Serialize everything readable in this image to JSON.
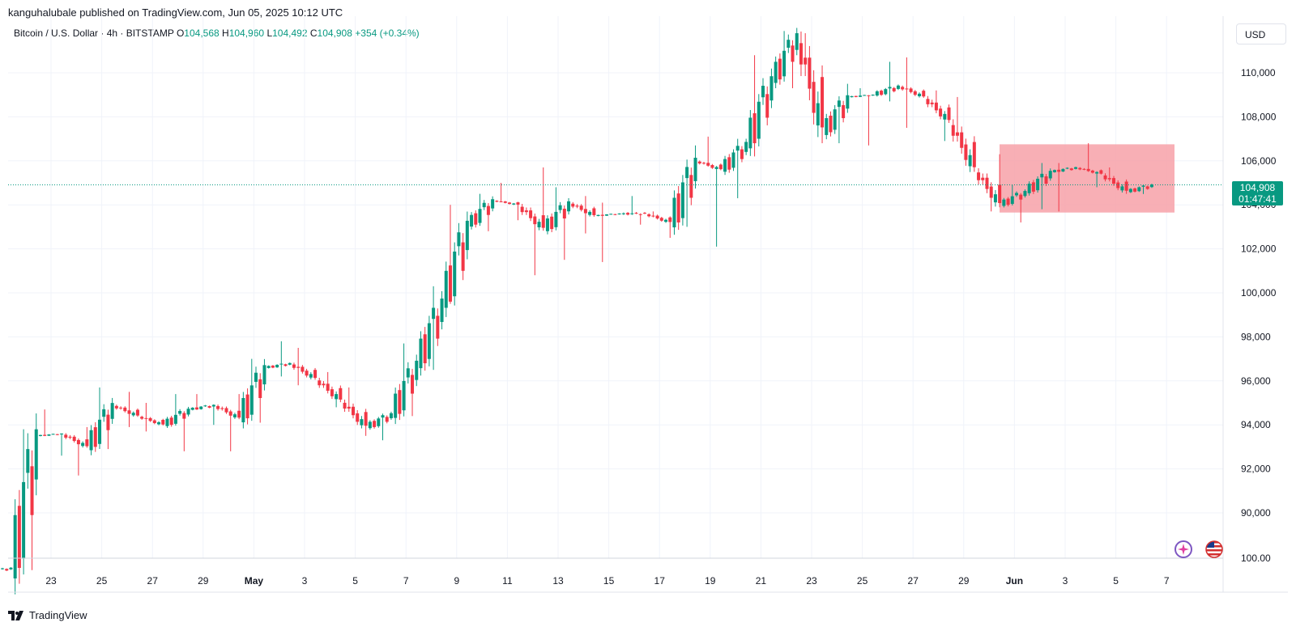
{
  "header": {
    "published": "kanguhalubale published on TradingView.com, Jun 05, 2025 10:12 UTC"
  },
  "legend": {
    "symbol": "Bitcoin / U.S. Dollar · 4h · BITSTAMP",
    "open_label": "O",
    "open": "104,568",
    "high_label": "H",
    "high": "104,960",
    "low_label": "L",
    "low": "104,492",
    "close_label": "C",
    "close": "104,908",
    "change": "+354 (+0.34%)"
  },
  "currency": "USD",
  "last_price": {
    "value": "104,908",
    "countdown": "01:47:41"
  },
  "brand": {
    "name": "TradingView"
  },
  "icons": {
    "logo": "tradingview-logo-icon",
    "quick": "sparkle-icon",
    "flag": "us-flag-icon"
  },
  "colors": {
    "up": "#089981",
    "down": "#f23645",
    "zone": "#f7a1a8",
    "grid": "#f0f3fa"
  },
  "chart_data": {
    "type": "candlestick",
    "interval": "4h",
    "exchange": "BITSTAMP",
    "currency": "USD",
    "y_ticks": [
      90000,
      92000,
      94000,
      96000,
      98000,
      100000,
      102000,
      104000,
      106000,
      108000,
      110000
    ],
    "y_labels": [
      "90,000",
      "92,000",
      "94,000",
      "96,000",
      "98,000",
      "100,000",
      "102,000",
      "104,000",
      "106,000",
      "108,000",
      "110,000"
    ],
    "y_bottom_label": "100.00",
    "x_labels": [
      "23",
      "25",
      "27",
      "29",
      "May",
      "3",
      "5",
      "7",
      "9",
      "11",
      "13",
      "15",
      "17",
      "19",
      "21",
      "23",
      "25",
      "27",
      "29",
      "Jun",
      "3",
      "5",
      "7"
    ],
    "last_price": 104908,
    "consolidation_zone": {
      "from_label": "30 May",
      "to_label": "6 Jun",
      "low": 103650,
      "high": 106750
    },
    "daily": [
      {
        "date": "Apr 21",
        "o": 87300,
        "h": 87800,
        "l": 87000,
        "c": 87500
      },
      {
        "date": "Apr 22",
        "o": 87500,
        "h": 93800,
        "l": 87400,
        "c": 93500
      },
      {
        "date": "Apr 23",
        "o": 93500,
        "h": 94700,
        "l": 92600,
        "c": 93600
      },
      {
        "date": "Apr 24",
        "o": 93600,
        "h": 93900,
        "l": 91700,
        "c": 93000
      },
      {
        "date": "Apr 25",
        "o": 93000,
        "h": 95700,
        "l": 92900,
        "c": 94900
      },
      {
        "date": "Apr 26",
        "o": 94900,
        "h": 95500,
        "l": 93900,
        "c": 94400
      },
      {
        "date": "Apr 27",
        "o": 94400,
        "h": 95000,
        "l": 93700,
        "c": 94000
      },
      {
        "date": "Apr 28",
        "o": 94000,
        "h": 95400,
        "l": 92800,
        "c": 94700
      },
      {
        "date": "Apr 29",
        "o": 94700,
        "h": 95400,
        "l": 94000,
        "c": 94900
      },
      {
        "date": "Apr 30",
        "o": 94900,
        "h": 95400,
        "l": 92800,
        "c": 94300
      },
      {
        "date": "May 1",
        "o": 94300,
        "h": 97000,
        "l": 94100,
        "c": 96600
      },
      {
        "date": "May 2",
        "o": 96600,
        "h": 97800,
        "l": 96200,
        "c": 96800
      },
      {
        "date": "May 3",
        "o": 96800,
        "h": 97500,
        "l": 95800,
        "c": 96100
      },
      {
        "date": "May 4",
        "o": 96100,
        "h": 96400,
        "l": 94800,
        "c": 95100
      },
      {
        "date": "May 5",
        "o": 95100,
        "h": 95700,
        "l": 93500,
        "c": 93900
      },
      {
        "date": "May 6",
        "o": 93900,
        "h": 94600,
        "l": 93300,
        "c": 94500
      },
      {
        "date": "May 7",
        "o": 94500,
        "h": 97700,
        "l": 94400,
        "c": 96800
      },
      {
        "date": "May 8",
        "o": 96800,
        "h": 100300,
        "l": 96500,
        "c": 99600
      },
      {
        "date": "May 9",
        "o": 99600,
        "h": 104000,
        "l": 99500,
        "c": 103100
      },
      {
        "date": "May 10",
        "o": 103100,
        "h": 104500,
        "l": 102800,
        "c": 104200
      },
      {
        "date": "May 11",
        "o": 104200,
        "h": 105000,
        "l": 103300,
        "c": 104000
      },
      {
        "date": "May 12",
        "o": 104000,
        "h": 105700,
        "l": 100800,
        "c": 102900
      },
      {
        "date": "May 13",
        "o": 102900,
        "h": 104800,
        "l": 101500,
        "c": 104100
      },
      {
        "date": "May 14",
        "o": 104100,
        "h": 104400,
        "l": 102700,
        "c": 103500
      },
      {
        "date": "May 15",
        "o": 103500,
        "h": 104100,
        "l": 101400,
        "c": 103600
      },
      {
        "date": "May 16",
        "o": 103600,
        "h": 104400,
        "l": 103100,
        "c": 103600
      },
      {
        "date": "May 17",
        "o": 103600,
        "h": 103700,
        "l": 102500,
        "c": 103200
      },
      {
        "date": "May 18",
        "o": 103200,
        "h": 106700,
        "l": 103000,
        "c": 106000
      },
      {
        "date": "May 19",
        "o": 106000,
        "h": 107100,
        "l": 102100,
        "c": 105600
      },
      {
        "date": "May 20",
        "o": 105600,
        "h": 107000,
        "l": 104300,
        "c": 106800
      },
      {
        "date": "May 21",
        "o": 106800,
        "h": 110800,
        "l": 106200,
        "c": 109700
      },
      {
        "date": "May 22",
        "o": 109700,
        "h": 111900,
        "l": 109300,
        "c": 111700
      },
      {
        "date": "May 23",
        "o": 111700,
        "h": 111800,
        "l": 106800,
        "c": 107300
      },
      {
        "date": "May 24",
        "o": 107300,
        "h": 109500,
        "l": 106800,
        "c": 108900
      },
      {
        "date": "May 25",
        "o": 108900,
        "h": 109300,
        "l": 106700,
        "c": 109000
      },
      {
        "date": "May 26",
        "o": 109000,
        "h": 110500,
        "l": 108700,
        "c": 109400
      },
      {
        "date": "May 27",
        "o": 109400,
        "h": 110700,
        "l": 107500,
        "c": 108900
      },
      {
        "date": "May 28",
        "o": 108900,
        "h": 109200,
        "l": 106900,
        "c": 107800
      },
      {
        "date": "May 29",
        "o": 107800,
        "h": 108900,
        "l": 105500,
        "c": 105600
      },
      {
        "date": "May 30",
        "o": 105600,
        "h": 106300,
        "l": 103700,
        "c": 104000
      },
      {
        "date": "May 31",
        "o": 104000,
        "h": 104900,
        "l": 103200,
        "c": 104600
      },
      {
        "date": "Jun 1",
        "o": 104600,
        "h": 105900,
        "l": 103800,
        "c": 105500
      },
      {
        "date": "Jun 2",
        "o": 105500,
        "h": 105900,
        "l": 103700,
        "c": 105700
      },
      {
        "date": "Jun 3",
        "o": 105700,
        "h": 106800,
        "l": 104800,
        "c": 105400
      },
      {
        "date": "Jun 4",
        "o": 105400,
        "h": 105700,
        "l": 104500,
        "c": 104600
      },
      {
        "date": "Jun 5",
        "o": 104600,
        "h": 104960,
        "l": 104492,
        "c": 104908
      }
    ]
  }
}
